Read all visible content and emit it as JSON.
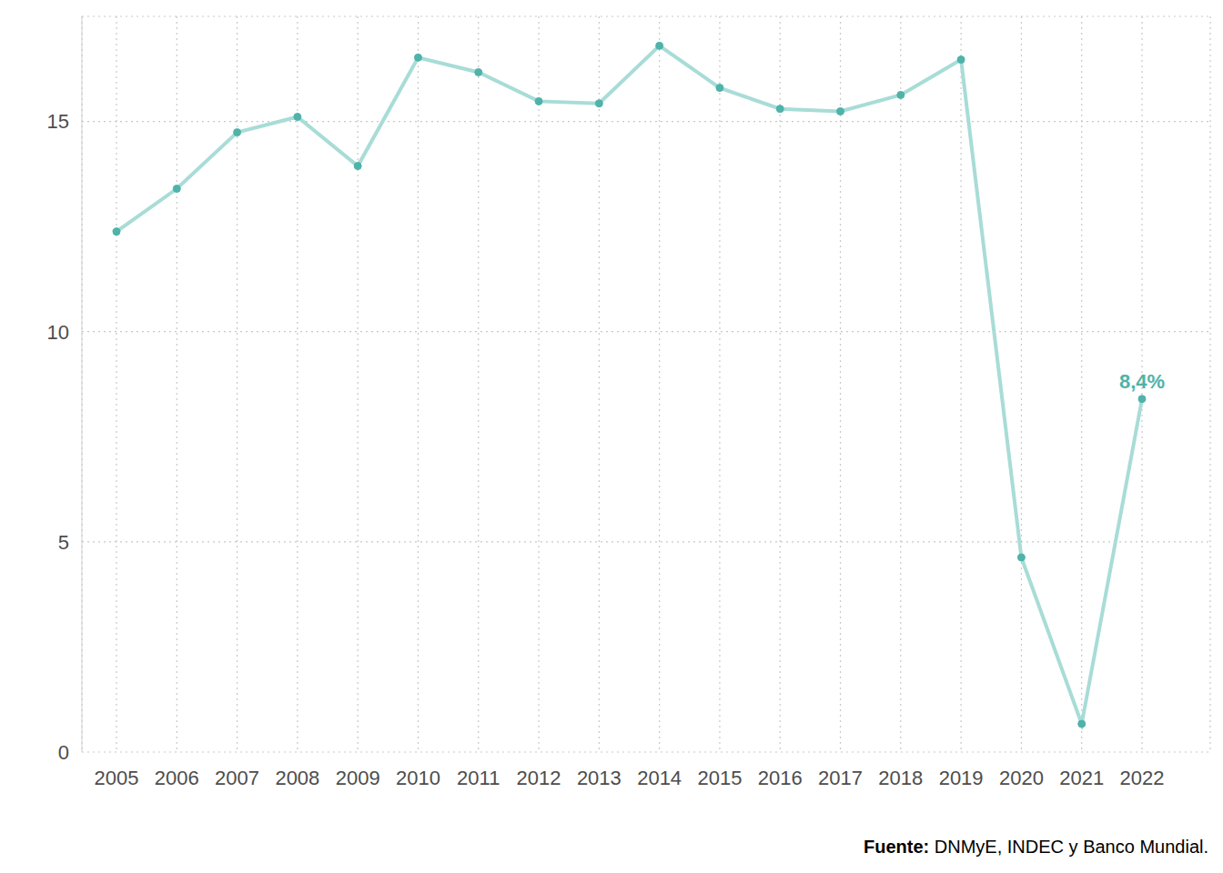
{
  "chart_data": {
    "type": "line",
    "categories": [
      "2005",
      "2006",
      "2007",
      "2008",
      "2009",
      "2010",
      "2011",
      "2012",
      "2013",
      "2014",
      "2015",
      "2016",
      "2017",
      "2018",
      "2019",
      "2020",
      "2021",
      "2022"
    ],
    "values": [
      12.38,
      13.4,
      14.74,
      15.11,
      13.94,
      16.52,
      16.17,
      15.48,
      15.43,
      16.8,
      15.8,
      15.3,
      15.24,
      15.63,
      16.47,
      4.63,
      0.67,
      8.4
    ],
    "value_labels": [
      null,
      null,
      null,
      null,
      null,
      null,
      null,
      null,
      null,
      null,
      null,
      null,
      null,
      null,
      null,
      null,
      null,
      "8,4%"
    ],
    "data_labels": true,
    "color": "#a8dcd7",
    "marker": "circle",
    "ylim": [
      0,
      17.5
    ],
    "yticks": [
      0,
      5,
      10,
      15
    ],
    "grid": true,
    "source_label": "Fuente:",
    "source": "DNMyE, INDEC y Banco Mundial."
  }
}
